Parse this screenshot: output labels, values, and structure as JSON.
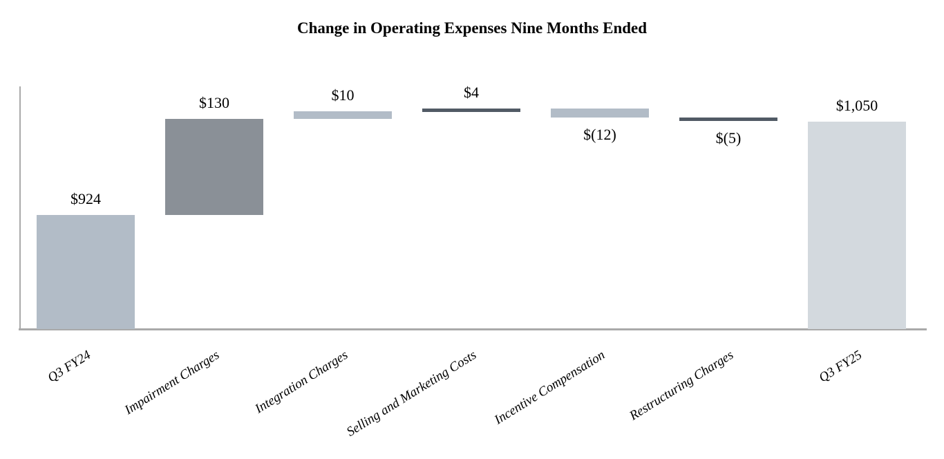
{
  "title": "Change in Operating Expenses Nine Months Ended",
  "chart_data": {
    "type": "bar",
    "subtype": "waterfall",
    "title": "Change in Operating Expenses Nine Months Ended",
    "xlabel": "",
    "ylabel": "",
    "ylim": [
      770,
      1100
    ],
    "grid": false,
    "legend": false,
    "axis_color": "#a9a9a9",
    "categories": [
      "Q3 FY24",
      "Impairment Charges",
      "Integration Charges",
      "Selling and Marketing Costs",
      "Incentive Compensation",
      "Restructuring Charges",
      "Q3 FY25"
    ],
    "bars": [
      {
        "category": "Q3 FY24",
        "value": 924,
        "display": "$924",
        "kind": "total",
        "color": "#b2bcc7",
        "label_position": "above"
      },
      {
        "category": "Impairment Charges",
        "value": 130,
        "display": "$130",
        "kind": "delta",
        "color": "#8a9097",
        "label_position": "above"
      },
      {
        "category": "Integration Charges",
        "value": 10,
        "display": "$10",
        "kind": "delta",
        "color": "#b2bcc7",
        "label_position": "above"
      },
      {
        "category": "Selling and Marketing Costs",
        "value": 4,
        "display": "$4",
        "kind": "delta",
        "color": "#515a65",
        "label_position": "above"
      },
      {
        "category": "Incentive Compensation",
        "value": -12,
        "display": "$(12)",
        "kind": "delta",
        "color": "#b2bcc7",
        "label_position": "below"
      },
      {
        "category": "Restructuring Charges",
        "value": -5,
        "display": "$(5)",
        "kind": "delta",
        "color": "#515a65",
        "label_position": "below"
      },
      {
        "category": "Q3 FY25",
        "value": 1050,
        "display": "$1,050",
        "kind": "total",
        "color": "#d3d9de",
        "label_position": "above"
      }
    ]
  }
}
